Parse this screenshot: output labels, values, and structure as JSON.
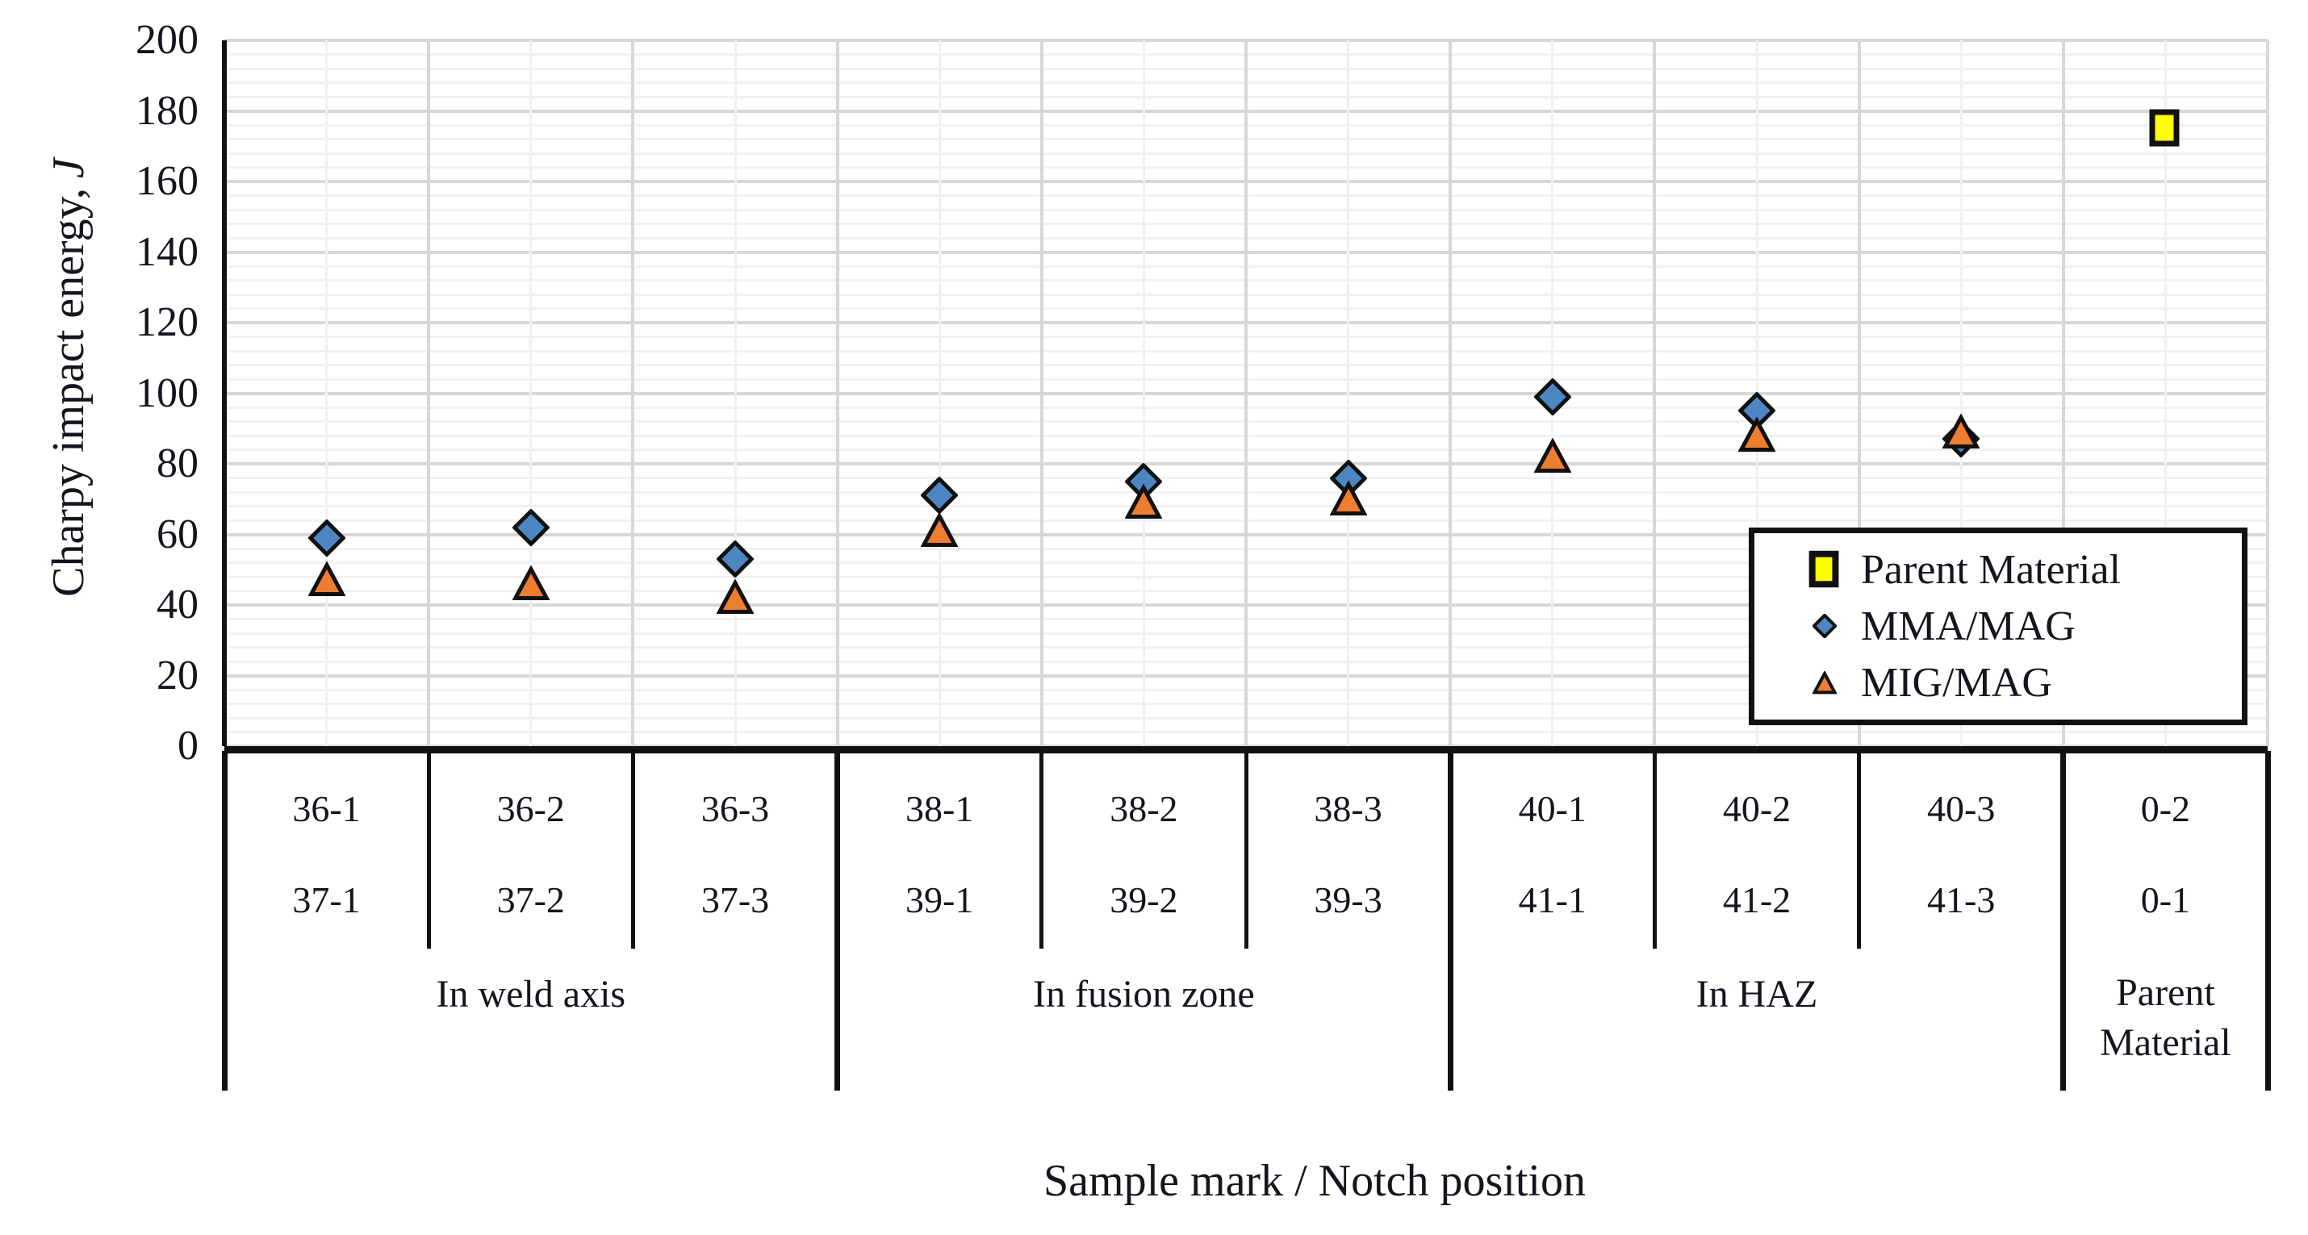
{
  "chart_data": {
    "type": "scatter",
    "title": "",
    "xlabel": "Sample mark / Notch position",
    "ylabel": "Charpy impact energy, J",
    "ylabel_main": "Charpy impact energy,",
    "ylabel_unit": "J",
    "ylim": [
      0,
      200
    ],
    "y_ticks": [
      0,
      20,
      40,
      60,
      80,
      100,
      120,
      140,
      160,
      180,
      200
    ],
    "y_minor_step": 4,
    "grid": true,
    "categories": [
      {
        "sample_top": "36-1",
        "sample_bottom": "37-1"
      },
      {
        "sample_top": "36-2",
        "sample_bottom": "37-2"
      },
      {
        "sample_top": "36-3",
        "sample_bottom": "37-3"
      },
      {
        "sample_top": "38-1",
        "sample_bottom": "39-1"
      },
      {
        "sample_top": "38-2",
        "sample_bottom": "39-2"
      },
      {
        "sample_top": "38-3",
        "sample_bottom": "39-3"
      },
      {
        "sample_top": "40-1",
        "sample_bottom": "41-1"
      },
      {
        "sample_top": "40-2",
        "sample_bottom": "41-2"
      },
      {
        "sample_top": "40-3",
        "sample_bottom": "41-3"
      },
      {
        "sample_top": "0-2",
        "sample_bottom": "0-1"
      }
    ],
    "groups": [
      {
        "label": "In weld axis",
        "label_lines": [
          "In weld axis"
        ],
        "start": 0,
        "span": 3
      },
      {
        "label": "In fusion zone",
        "label_lines": [
          "In fusion zone"
        ],
        "start": 3,
        "span": 3
      },
      {
        "label": "In HAZ",
        "label_lines": [
          "In HAZ"
        ],
        "start": 6,
        "span": 3
      },
      {
        "label": "Parent Material",
        "label_lines": [
          "Parent",
          "Material"
        ],
        "start": 9,
        "span": 1
      }
    ],
    "series": [
      {
        "name": "Parent Material",
        "marker": "square",
        "color": "#ffff00",
        "points": [
          {
            "category_index": 9,
            "value": 175
          }
        ]
      },
      {
        "name": "MMA/MAG",
        "marker": "diamond",
        "color": "#4e86c4",
        "points": [
          {
            "category_index": 0,
            "value": 59
          },
          {
            "category_index": 1,
            "value": 62
          },
          {
            "category_index": 2,
            "value": 53
          },
          {
            "category_index": 3,
            "value": 71
          },
          {
            "category_index": 4,
            "value": 75
          },
          {
            "category_index": 5,
            "value": 76
          },
          {
            "category_index": 6,
            "value": 99
          },
          {
            "category_index": 7,
            "value": 95
          },
          {
            "category_index": 8,
            "value": 87
          }
        ]
      },
      {
        "name": "MIG/MAG",
        "marker": "triangle",
        "color": "#ed7d31",
        "points": [
          {
            "category_index": 0,
            "value": 47
          },
          {
            "category_index": 1,
            "value": 46
          },
          {
            "category_index": 2,
            "value": 42
          },
          {
            "category_index": 3,
            "value": 61
          },
          {
            "category_index": 4,
            "value": 69
          },
          {
            "category_index": 5,
            "value": 70
          },
          {
            "category_index": 6,
            "value": 82
          },
          {
            "category_index": 7,
            "value": 88
          },
          {
            "category_index": 8,
            "value": 89
          }
        ]
      }
    ],
    "legend": {
      "position": "inside-right",
      "entries": [
        {
          "label": "Parent Material",
          "marker": "square",
          "color": "#ffff00"
        },
        {
          "label": "MMA/MAG",
          "marker": "diamond",
          "color": "#4e86c4"
        },
        {
          "label": "MIG/MAG",
          "marker": "triangle",
          "color": "#ed7d31"
        }
      ]
    },
    "colors": {
      "grid_major": "#d7d7d7",
      "grid_minor": "#f1f1f1",
      "axis": "#111111",
      "marker_outline": "#111111",
      "text": "#15151f"
    }
  }
}
